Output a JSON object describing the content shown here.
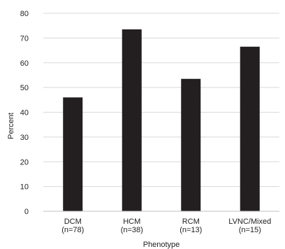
{
  "chart_data": {
    "type": "bar",
    "categories": [
      [
        "DCM",
        "(n=78)"
      ],
      [
        "HCM",
        "(n=38)"
      ],
      [
        "RCM",
        "(n=13)"
      ],
      [
        "LVNC/Mixed",
        "(n=15)"
      ]
    ],
    "values": [
      46,
      73.5,
      53.5,
      66.5
    ],
    "xlabel": "Phenotype",
    "ylabel": "Percent",
    "ylim": [
      0,
      80
    ],
    "yticks": [
      0,
      10,
      20,
      30,
      40,
      50,
      60,
      70,
      80
    ],
    "grid": true,
    "bar_color": "#231f20",
    "grid_color": "#d9d9d9",
    "axis_color": "#bfbfbf"
  }
}
